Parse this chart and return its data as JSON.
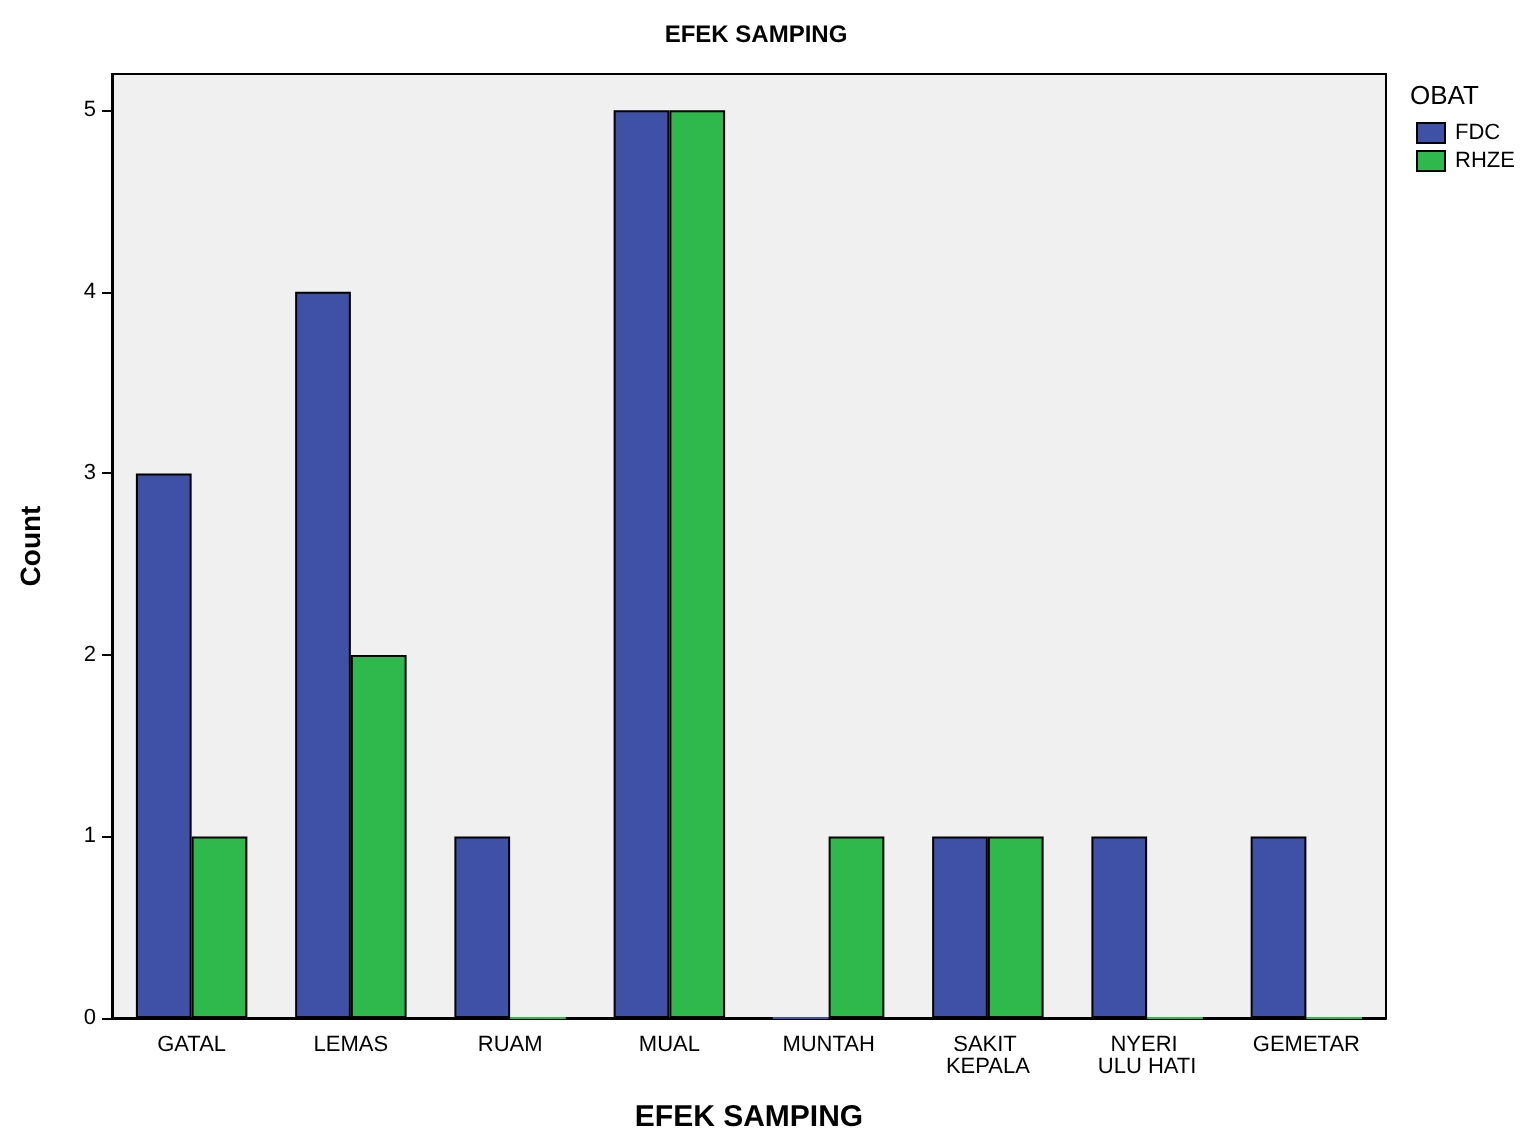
{
  "chart_data": {
    "type": "bar",
    "title": "EFEK SAMPING",
    "xlabel": "EFEK SAMPING",
    "ylabel": "Count",
    "legend_title": "OBAT",
    "legend": "top right",
    "grid": false,
    "categories": [
      "GATAL",
      "LEMAS",
      "RUAM",
      "MUAL",
      "MUNTAH",
      "SAKIT KEPALA",
      "NYERI ULU HATI",
      "GEMETAR"
    ],
    "series": [
      {
        "name": "FDC",
        "color": "#3f51a7",
        "values": [
          3,
          4,
          1,
          5,
          0,
          1,
          1,
          1
        ]
      },
      {
        "name": "RHZE",
        "color": "#2fb84b",
        "values": [
          1,
          2,
          0,
          5,
          1,
          1,
          0,
          0
        ]
      }
    ],
    "ylim": [
      0,
      5.2
    ],
    "yticks": [
      0,
      1,
      2,
      3,
      4,
      5
    ]
  }
}
